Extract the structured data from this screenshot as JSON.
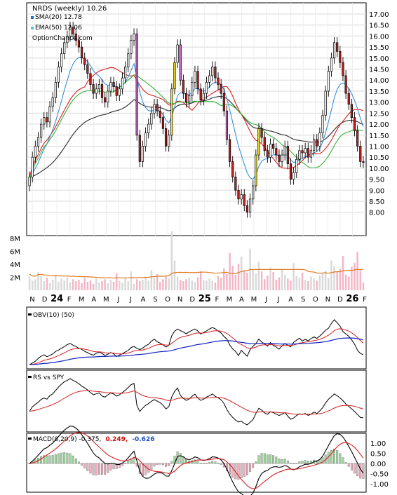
{
  "chart_data": {
    "type": "stock-chart",
    "title": "NRDS (weekly) 10.26",
    "legend": [
      {
        "name": "SMA(20) 12.78",
        "color": "#1f6fd0"
      },
      {
        "name": "EMA(50) 12.06",
        "color": "#5bc0de"
      },
      {
        "name": "OptionChance.com",
        "color": ""
      }
    ],
    "price_axis": {
      "min": 7.5,
      "max": 17.0,
      "ticks": [
        "17.00",
        "16.50",
        "16.00",
        "15.50",
        "15.00",
        "14.50",
        "14.00",
        "13.50",
        "13.00",
        "12.50",
        "12.00",
        "11.50",
        "11.00",
        "10.50",
        "10.00",
        "9.50",
        "9.00",
        "8.50",
        "8.00"
      ]
    },
    "volume_axis": {
      "min": 0,
      "max": 9000000,
      "ticks": [
        "8M",
        "6M",
        "4M",
        "2M"
      ]
    },
    "time_labels": [
      {
        "label": "N",
        "bold": false
      },
      {
        "label": "D",
        "bold": false
      },
      {
        "label": "24",
        "bold": true
      },
      {
        "label": "F",
        "bold": false
      },
      {
        "label": "M",
        "bold": false
      },
      {
        "label": "A",
        "bold": false
      },
      {
        "label": "M",
        "bold": false
      },
      {
        "label": "J",
        "bold": false
      },
      {
        "label": "J",
        "bold": false
      },
      {
        "label": "A",
        "bold": false
      },
      {
        "label": "S",
        "bold": false
      },
      {
        "label": "O",
        "bold": false
      },
      {
        "label": "N",
        "bold": false
      },
      {
        "label": "D",
        "bold": false
      },
      {
        "label": "25",
        "bold": true
      },
      {
        "label": "F",
        "bold": false
      },
      {
        "label": "M",
        "bold": false
      },
      {
        "label": "A",
        "bold": false
      },
      {
        "label": "M",
        "bold": false
      },
      {
        "label": "J",
        "bold": false
      },
      {
        "label": "J",
        "bold": false
      },
      {
        "label": "A",
        "bold": false
      },
      {
        "label": "S",
        "bold": false
      },
      {
        "label": "O",
        "bold": false
      },
      {
        "label": "N",
        "bold": false
      },
      {
        "label": "D",
        "bold": false
      },
      {
        "label": "26",
        "bold": true
      },
      {
        "label": "F",
        "bold": false
      }
    ],
    "weekly_close": [
      9.6,
      10.5,
      11.0,
      11.4,
      12.0,
      12.3,
      12.1,
      12.8,
      13.2,
      13.9,
      14.6,
      15.2,
      15.7,
      16.0,
      16.4,
      16.1,
      15.8,
      15.5,
      15.0,
      14.7,
      14.3,
      13.8,
      13.4,
      13.6,
      13.8,
      13.2,
      13.0,
      13.5,
      13.9,
      13.7,
      13.3,
      13.6,
      14.1,
      14.6,
      15.2,
      15.8,
      16.1,
      11.5,
      10.3,
      11.0,
      11.6,
      12.0,
      12.5,
      12.9,
      12.6,
      12.3,
      11.8,
      11.0,
      11.5,
      13.6,
      14.8,
      15.6,
      14.0,
      13.4,
      13.0,
      13.3,
      13.9,
      14.4,
      13.6,
      13.1,
      13.4,
      13.9,
      14.2,
      14.6,
      14.1,
      13.8,
      13.4,
      12.6,
      11.3,
      10.3,
      9.6,
      9.0,
      8.6,
      8.8,
      8.3,
      8.0,
      8.6,
      9.2,
      10.6,
      11.8,
      11.4,
      10.8,
      10.5,
      11.1,
      10.9,
      10.6,
      10.3,
      10.6,
      11.0,
      10.2,
      9.5,
      9.8,
      10.4,
      10.8,
      10.7,
      10.9,
      10.5,
      10.8,
      11.3,
      11.0,
      11.6,
      12.4,
      13.5,
      14.4,
      15.0,
      15.7,
      15.3,
      14.8,
      14.2,
      13.4,
      12.9,
      12.3,
      11.7,
      11.0,
      10.3,
      10.26
    ],
    "weekly_volume": [
      2.1,
      1.5,
      1.7,
      2.8,
      2.2,
      1.4,
      1.9,
      1.1,
      1.6,
      2.4,
      1.3,
      1.8,
      1.5,
      2.0,
      1.2,
      1.7,
      1.4,
      1.6,
      1.1,
      1.9,
      1.3,
      1.5,
      1.0,
      1.8,
      1.2,
      1.4,
      1.7,
      1.1,
      1.6,
      1.3,
      2.6,
      1.5,
      1.2,
      1.8,
      1.4,
      2.9,
      1.0,
      1.7,
      1.4,
      1.6,
      2.1,
      1.5,
      3.1,
      1.9,
      2.5,
      1.3,
      1.7,
      2.2,
      1.8,
      9.1,
      4.6,
      2.1,
      1.6,
      1.4,
      1.7,
      1.9,
      1.5,
      1.3,
      2.0,
      2.9,
      1.6,
      1.5,
      1.8,
      1.4,
      1.2,
      2.2,
      1.9,
      3.4,
      2.5,
      5.8,
      3.8,
      2.4,
      4.1,
      5.2,
      3.1,
      2.7,
      6.4,
      3.3,
      2.6,
      4.4,
      2.9,
      1.7,
      2.3,
      3.5,
      2.8,
      1.6,
      2.0,
      3.2,
      2.4,
      1.8,
      1.5,
      4.2,
      2.2,
      1.9,
      2.7,
      1.6,
      1.4,
      2.1,
      1.8,
      1.5,
      2.3,
      2.6,
      3.0,
      1.9,
      4.6,
      3.7,
      2.9,
      3.3,
      5.3,
      2.4,
      2.1,
      3.6,
      4.2,
      5.9,
      3.1,
      1.2
    ],
    "sub_panels": [
      {
        "label": "OBV(10) (50)",
        "series_colors": [
          "#000000",
          "#d62020",
          "#1020c0"
        ]
      },
      {
        "label": "RS vs SPY",
        "series_colors": [
          "#000000",
          "#d62020"
        ]
      },
      {
        "label": "MACD(8,20,9) -0.375,",
        "signal_value": "0.249,",
        "hist_value": "-0.626",
        "axis_ticks": [
          "1.00",
          "0.50",
          "0.00",
          "-0.50",
          "-1.00"
        ]
      }
    ]
  }
}
